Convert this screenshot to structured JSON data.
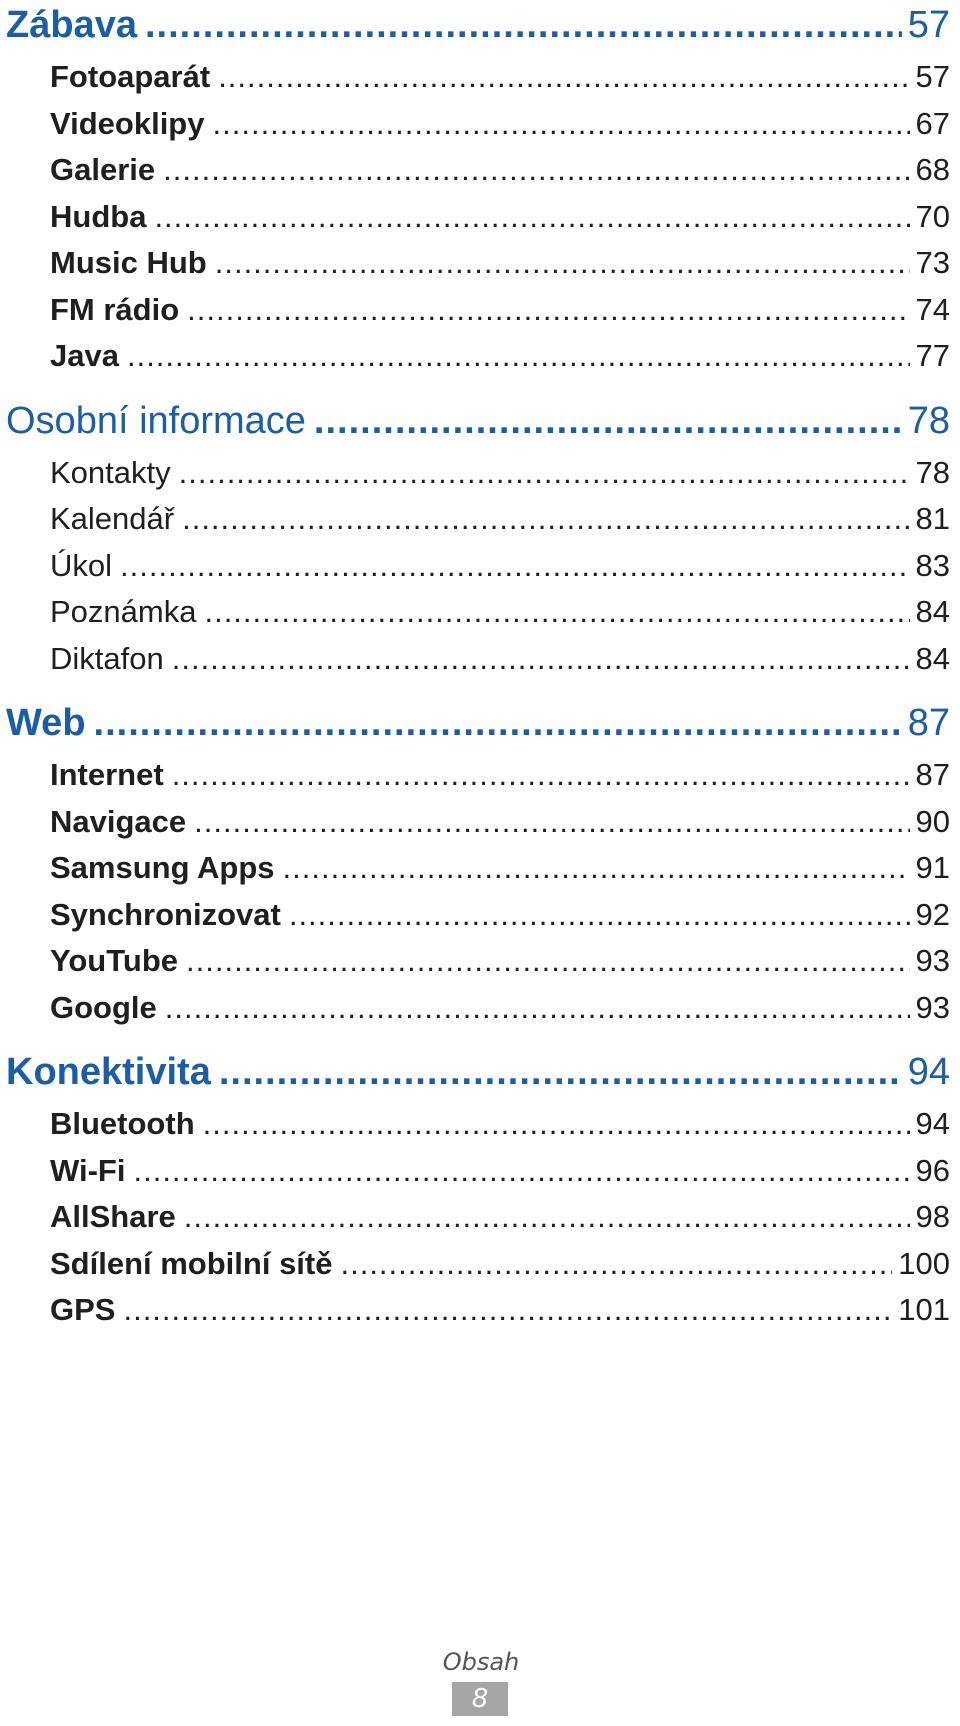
{
  "sections": [
    {
      "title": "Zábava",
      "page": "57",
      "entries": [
        {
          "label": "Fotoaparát",
          "page": "57"
        },
        {
          "label": "Videoklipy",
          "page": "67"
        },
        {
          "label": "Galerie",
          "page": "68"
        },
        {
          "label": "Hudba",
          "page": "70"
        },
        {
          "label": "Music Hub",
          "page": "73"
        },
        {
          "label": "FM rádio",
          "page": "74"
        },
        {
          "label": "Java",
          "page": "77"
        }
      ]
    },
    {
      "title": "Osobní informace",
      "page": "78",
      "entries": [
        {
          "label": "Kontakty",
          "page": "78"
        },
        {
          "label": "Kalendář",
          "page": "81"
        },
        {
          "label": "Úkol",
          "page": "83"
        },
        {
          "label": "Poznámka",
          "page": "84"
        },
        {
          "label": "Diktafon",
          "page": "84"
        }
      ]
    },
    {
      "title": "Web",
      "page": "87",
      "entries": [
        {
          "label": "Internet",
          "page": "87"
        },
        {
          "label": "Navigace",
          "page": "90"
        },
        {
          "label": "Samsung Apps",
          "page": "91"
        },
        {
          "label": "Synchronizovat",
          "page": "92"
        },
        {
          "label": "YouTube",
          "page": "93"
        },
        {
          "label": "Google",
          "page": "93"
        }
      ]
    },
    {
      "title": "Konektivita",
      "page": "94",
      "entries": [
        {
          "label": "Bluetooth",
          "page": "94"
        },
        {
          "label": "Wi-Fi",
          "page": "96"
        },
        {
          "label": "AllShare",
          "page": "98"
        },
        {
          "label": "Sdílení mobilní sítě",
          "page": "100"
        },
        {
          "label": "GPS",
          "page": "101"
        }
      ]
    }
  ],
  "footer": {
    "label": "Obsah",
    "page": "8"
  },
  "colors": {
    "heading": "#1a5ea8",
    "text": "#1f1f1f",
    "footer_badge": "#a5a5a5"
  }
}
